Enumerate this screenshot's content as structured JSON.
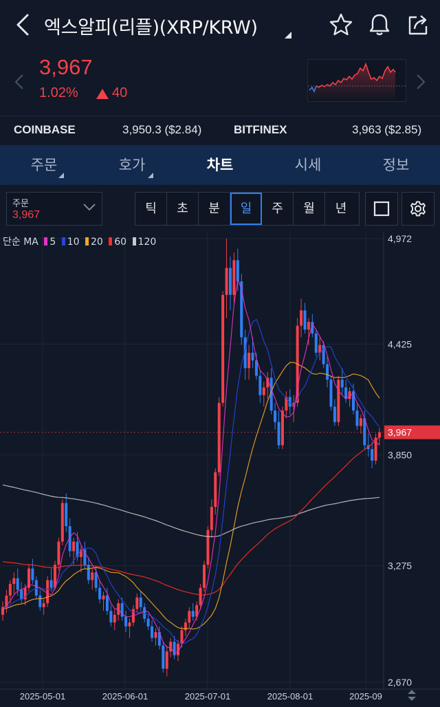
{
  "header": {
    "title": "엑스알피(리플)(XRP/KRW)",
    "icons": [
      "back-icon",
      "star-icon",
      "bell-icon",
      "share-icon"
    ]
  },
  "price": {
    "current": "3,967",
    "change_pct": "1.02%",
    "change_abs": "40",
    "color": "#f2414b"
  },
  "exchanges": [
    {
      "name": "COINBASE",
      "value": "3,950.3 ($2.84)"
    },
    {
      "name": "BITFINEX",
      "value": "3,963 ($2.85)"
    }
  ],
  "tabs": [
    {
      "label": "주문",
      "has_menu": true
    },
    {
      "label": "호가",
      "has_menu": true
    },
    {
      "label": "차트",
      "active": true
    },
    {
      "label": "시세"
    },
    {
      "label": "정보"
    }
  ],
  "toolbar": {
    "order_label": "주문",
    "order_value": "3,967",
    "periods": [
      "틱",
      "초",
      "분",
      "일",
      "주",
      "월",
      "년"
    ],
    "active_period": "일"
  },
  "chart_data": {
    "type": "candlestick",
    "legend": {
      "prefix": "단순 MA",
      "items": [
        {
          "label": "5",
          "color": "#e532c8"
        },
        {
          "label": "10",
          "color": "#2346e0"
        },
        {
          "label": "20",
          "color": "#f5a623"
        },
        {
          "label": "60",
          "color": "#ff2d20"
        },
        {
          "label": "120",
          "color": "#c8c8c8"
        }
      ]
    },
    "y_ticks": [
      "4,972",
      "4,425",
      "3,850",
      "3,275",
      "2,670"
    ],
    "y_range": [
      2670,
      4972
    ],
    "x_ticks": [
      "2025-05-01",
      "2025-06-01",
      "2025-07-01",
      "2025-08-01",
      "2025-09"
    ],
    "current_price_label": "3,967",
    "current_price": 3967,
    "up_color": "#f2414b",
    "down_color": "#2f7ff2",
    "candles": [
      [
        3020,
        3090,
        2990,
        3060
      ],
      [
        3060,
        3150,
        3030,
        3120
      ],
      [
        3120,
        3200,
        3080,
        3180
      ],
      [
        3180,
        3240,
        3130,
        3210
      ],
      [
        3210,
        3260,
        3120,
        3150
      ],
      [
        3150,
        3190,
        3080,
        3100
      ],
      [
        3100,
        3180,
        3070,
        3160
      ],
      [
        3160,
        3280,
        3140,
        3260
      ],
      [
        3260,
        3310,
        3180,
        3200
      ],
      [
        3200,
        3220,
        3100,
        3120
      ],
      [
        3120,
        3150,
        3040,
        3060
      ],
      [
        3060,
        3100,
        3020,
        3080
      ],
      [
        3080,
        3220,
        3060,
        3200
      ],
      [
        3200,
        3260,
        3140,
        3160
      ],
      [
        3160,
        3300,
        3150,
        3280
      ],
      [
        3280,
        3420,
        3250,
        3400
      ],
      [
        3400,
        3620,
        3380,
        3600
      ],
      [
        3600,
        3650,
        3450,
        3480
      ],
      [
        3480,
        3520,
        3320,
        3350
      ],
      [
        3350,
        3420,
        3280,
        3400
      ],
      [
        3400,
        3450,
        3300,
        3320
      ],
      [
        3320,
        3380,
        3240,
        3360
      ],
      [
        3360,
        3400,
        3260,
        3280
      ],
      [
        3280,
        3320,
        3180,
        3200
      ],
      [
        3200,
        3260,
        3150,
        3240
      ],
      [
        3240,
        3270,
        3140,
        3160
      ],
      [
        3160,
        3200,
        3080,
        3100
      ],
      [
        3100,
        3140,
        3040,
        3120
      ],
      [
        3120,
        3160,
        3020,
        3040
      ],
      [
        3040,
        3070,
        2960,
        2980
      ],
      [
        2980,
        3050,
        2940,
        3020
      ],
      [
        3020,
        3100,
        2990,
        3080
      ],
      [
        3080,
        3110,
        2990,
        3010
      ],
      [
        3010,
        3040,
        2930,
        2960
      ],
      [
        2960,
        3000,
        2900,
        2980
      ],
      [
        2980,
        3070,
        2960,
        3050
      ],
      [
        3050,
        3130,
        3030,
        3110
      ],
      [
        3110,
        3140,
        3040,
        3060
      ],
      [
        3060,
        3080,
        2980,
        3000
      ],
      [
        3000,
        3020,
        2940,
        2960
      ],
      [
        2960,
        2990,
        2880,
        2900
      ],
      [
        2900,
        2950,
        2860,
        2930
      ],
      [
        2930,
        2960,
        2840,
        2860
      ],
      [
        2860,
        2880,
        2720,
        2740
      ],
      [
        2740,
        2860,
        2700,
        2830
      ],
      [
        2830,
        2900,
        2800,
        2880
      ],
      [
        2880,
        2910,
        2790,
        2810
      ],
      [
        2810,
        2890,
        2780,
        2870
      ],
      [
        2870,
        2960,
        2850,
        2940
      ],
      [
        2940,
        3000,
        2910,
        2980
      ],
      [
        2980,
        3060,
        2950,
        3040
      ],
      [
        3040,
        3080,
        2990,
        3010
      ],
      [
        3010,
        3090,
        2990,
        3070
      ],
      [
        3070,
        3180,
        3050,
        3160
      ],
      [
        3160,
        3300,
        3140,
        3280
      ],
      [
        3280,
        3480,
        3260,
        3460
      ],
      [
        3460,
        3620,
        3420,
        3580
      ],
      [
        3580,
        3780,
        3540,
        3760
      ],
      [
        3760,
        4150,
        3740,
        4120
      ],
      [
        4120,
        4700,
        4100,
        4680
      ],
      [
        4680,
        4972,
        4560,
        4820
      ],
      [
        4820,
        4880,
        4600,
        4680
      ],
      [
        4680,
        4900,
        4640,
        4860
      ],
      [
        4860,
        4920,
        4700,
        4750
      ],
      [
        4750,
        4790,
        4420,
        4460
      ],
      [
        4460,
        4500,
        4240,
        4300
      ],
      [
        4300,
        4420,
        4240,
        4380
      ],
      [
        4380,
        4460,
        4300,
        4340
      ],
      [
        4340,
        4380,
        4240,
        4260
      ],
      [
        4260,
        4290,
        4120,
        4160
      ],
      [
        4160,
        4230,
        4100,
        4200
      ],
      [
        4200,
        4280,
        4140,
        4250
      ],
      [
        4250,
        4300,
        4060,
        4080
      ],
      [
        4080,
        4120,
        3980,
        4020
      ],
      [
        4020,
        4080,
        3880,
        3900
      ],
      [
        3900,
        4100,
        3880,
        4080
      ],
      [
        4080,
        4180,
        4040,
        4150
      ],
      [
        4150,
        4190,
        4060,
        4100
      ],
      [
        4100,
        4160,
        4020,
        4120
      ],
      [
        4120,
        4560,
        4100,
        4520
      ],
      [
        4520,
        4660,
        4460,
        4600
      ],
      [
        4600,
        4640,
        4480,
        4500
      ],
      [
        4500,
        4560,
        4420,
        4540
      ],
      [
        4540,
        4580,
        4460,
        4480
      ],
      [
        4480,
        4500,
        4360,
        4380
      ],
      [
        4380,
        4460,
        4340,
        4420
      ],
      [
        4420,
        4440,
        4300,
        4320
      ],
      [
        4320,
        4360,
        4200,
        4240
      ],
      [
        4240,
        4260,
        4080,
        4100
      ],
      [
        4100,
        4140,
        4000,
        4020
      ],
      [
        4020,
        4260,
        4000,
        4240
      ],
      [
        4240,
        4300,
        4160,
        4200
      ],
      [
        4200,
        4240,
        4120,
        4140
      ],
      [
        4140,
        4200,
        4100,
        4180
      ],
      [
        4180,
        4220,
        4060,
        4080
      ],
      [
        4080,
        4120,
        3980,
        4000
      ],
      [
        4000,
        4060,
        3960,
        4040
      ],
      [
        4040,
        4080,
        3880,
        3900
      ],
      [
        3900,
        3960,
        3840,
        3880
      ],
      [
        3880,
        3920,
        3780,
        3820
      ],
      [
        3820,
        3960,
        3800,
        3940
      ],
      [
        3940,
        3990,
        3900,
        3967
      ]
    ]
  }
}
